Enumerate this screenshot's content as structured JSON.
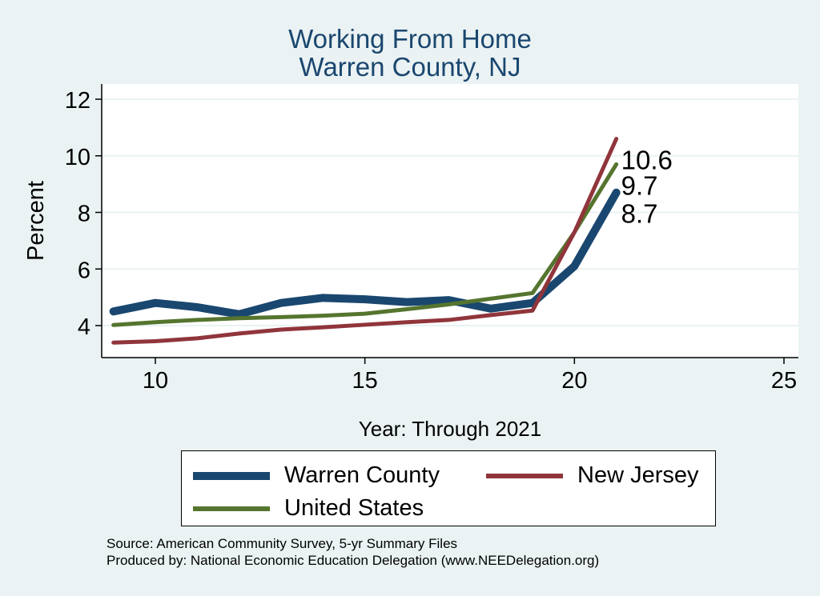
{
  "title_line1": "Working From Home",
  "title_line2": "Warren County, NJ",
  "source_line1": "Source: American Community Survey, 5-yr Summary Files",
  "source_line2": "Produced by: National Economic Education Delegation (www.NEEDelegation.org)",
  "colors": {
    "background": "#eaf2f3",
    "plot_background": "#ffffff",
    "title": "#1a476f",
    "gridline": "#eaf2f3",
    "warren": "#1a476f",
    "new_jersey": "#90353b",
    "united_states": "#55752f"
  },
  "legend": {
    "warren": "Warren County",
    "new_jersey": "New Jersey",
    "united_states": "United States"
  },
  "chart_data": {
    "type": "line",
    "title": "Working From Home Warren County, NJ",
    "xlabel": "Year: Through 2021",
    "ylabel": "Percent",
    "xlim": [
      9,
      25
    ],
    "ylim": [
      3,
      12.5
    ],
    "xticks": [
      10,
      15,
      20,
      25
    ],
    "yticks": [
      4,
      6,
      8,
      10,
      12
    ],
    "grid": true,
    "legend_position": "bottom",
    "x": [
      9,
      10,
      11,
      12,
      13,
      14,
      15,
      16,
      17,
      18,
      19,
      20,
      21
    ],
    "series": [
      {
        "name": "Warren County",
        "key": "warren",
        "values": [
          4.5,
          4.8,
          4.65,
          4.4,
          4.8,
          4.98,
          4.93,
          4.83,
          4.9,
          4.6,
          4.8,
          6.1,
          8.7
        ],
        "end_label": "8.7"
      },
      {
        "name": "New Jersey",
        "key": "new_jersey",
        "values": [
          3.4,
          3.45,
          3.55,
          3.72,
          3.86,
          3.94,
          4.03,
          4.12,
          4.2,
          4.37,
          4.53,
          7.3,
          10.6
        ],
        "end_label": "10.6"
      },
      {
        "name": "United States",
        "key": "united_states",
        "values": [
          4.02,
          4.12,
          4.2,
          4.26,
          4.3,
          4.35,
          4.42,
          4.58,
          4.75,
          4.95,
          5.15,
          7.3,
          9.7
        ],
        "end_label": "9.7"
      }
    ]
  }
}
